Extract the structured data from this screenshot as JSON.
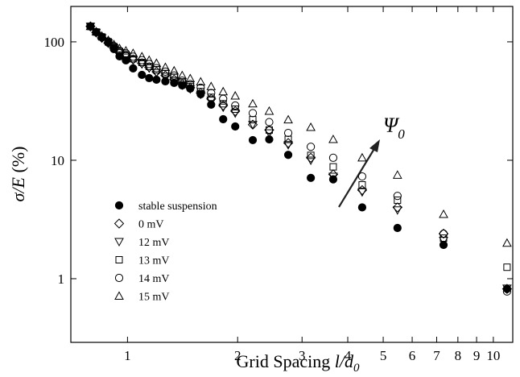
{
  "chart_data": {
    "type": "scatter",
    "x_label": {
      "text": "Grid Spacing ",
      "var": "l/d",
      "sub": "0"
    },
    "y_label": {
      "var": "σ/E",
      "text": " (%)"
    },
    "annotation": {
      "var": "Ψ",
      "sub": "0"
    },
    "log_x": true,
    "log_y": true,
    "xlim": [
      0.7,
      11.3
    ],
    "ylim": [
      0.29,
      199
    ],
    "xticks": [
      1,
      2,
      3,
      4,
      5,
      6,
      7,
      8,
      9,
      10
    ],
    "yticks": [
      1,
      10,
      100
    ],
    "legend": "lower left",
    "x": [
      0.792,
      0.821,
      0.851,
      0.886,
      0.918,
      0.951,
      0.99,
      1.036,
      1.095,
      1.146,
      1.2,
      1.269,
      1.341,
      1.411,
      1.484,
      1.585,
      1.693,
      1.826,
      1.97,
      2.2,
      2.44,
      2.75,
      3.17,
      3.65,
      4.38,
      5.47,
      7.31,
      10.9
    ],
    "series": [
      {
        "name": "stable suspension",
        "marker": "filled-circle",
        "color": "#000000",
        "values": [
          134.7,
          120.7,
          109.8,
          98.4,
          86.9,
          75.5,
          69.8,
          59.7,
          52.6,
          49.4,
          47.9,
          46.4,
          45.0,
          42.9,
          40.3,
          36.1,
          29.5,
          22.2,
          19.3,
          14.8,
          15.0,
          11.1,
          7.1,
          6.9,
          4.0,
          2.68,
          1.93,
          0.82
        ]
      },
      {
        "name": "0 mV",
        "marker": "diamond",
        "color": "#000000",
        "values": [
          135,
          120,
          108,
          98,
          89,
          81,
          77,
          71,
          66,
          61,
          56,
          52,
          48,
          44,
          41,
          37,
          33,
          29,
          26,
          20,
          18,
          14,
          10.5,
          7.6,
          5.6,
          4.0,
          2.4,
          0.82
        ]
      },
      {
        "name": "12 mV",
        "marker": "triangle-down",
        "color": "#000000",
        "values": [
          135,
          120,
          108,
          98,
          89,
          81,
          76,
          70,
          65,
          60,
          55,
          51,
          47,
          43,
          40,
          36,
          32,
          28,
          25,
          20,
          17,
          13.5,
          10,
          7.3,
          5.4,
          3.8,
          2.1,
          0.83
        ]
      },
      {
        "name": "13 mV",
        "marker": "square",
        "color": "#000000",
        "values": [
          135,
          121,
          110,
          100,
          91,
          83,
          78,
          72,
          67,
          62,
          58,
          54,
          50,
          45,
          42,
          38,
          34,
          30,
          27,
          22,
          18,
          15,
          11,
          8.8,
          6.2,
          4.6,
          2.2,
          1.25
        ]
      },
      {
        "name": "14 mV",
        "marker": "circle",
        "color": "#000000",
        "values": [
          135,
          121,
          110,
          101,
          92,
          84,
          80,
          75,
          70,
          65,
          60,
          56,
          52,
          47,
          44,
          41,
          37,
          33,
          29,
          25,
          21,
          17,
          13,
          10.5,
          7.3,
          5.0,
          2.4,
          0.78
        ]
      },
      {
        "name": "15 mV",
        "marker": "triangle-up",
        "color": "#000000",
        "values": [
          135,
          122,
          112,
          103,
          95,
          88,
          84,
          80,
          75,
          70,
          66,
          61,
          57,
          52,
          49,
          46,
          42,
          38,
          35,
          30,
          26,
          22,
          19,
          15,
          10.5,
          7.5,
          3.5,
          2.0
        ]
      }
    ]
  }
}
